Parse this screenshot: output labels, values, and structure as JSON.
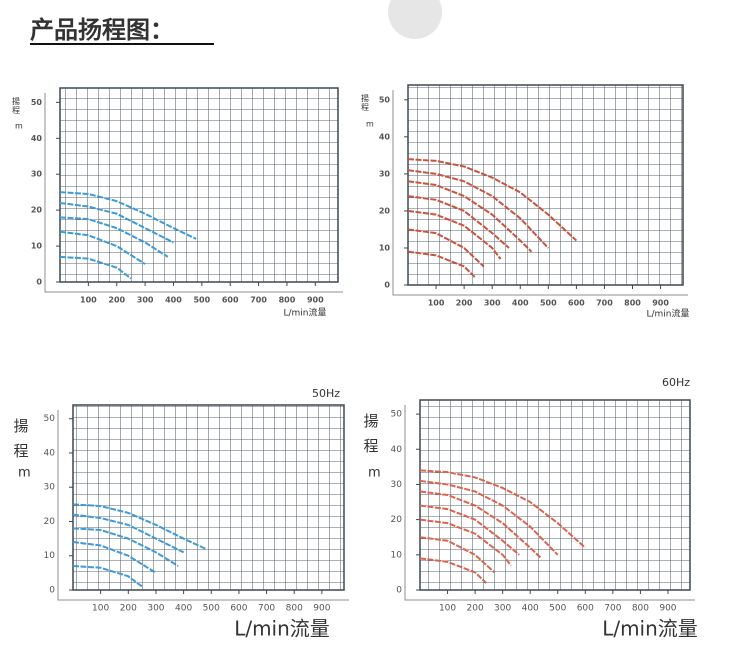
{
  "title": "产品扬程图：",
  "chart_data": [
    {
      "type": "line",
      "annotation": "",
      "y_label": "揚程",
      "y_unit": "m",
      "x_label": "L/min流量",
      "color": "#3f9ad6",
      "xlim": [
        0,
        980
      ],
      "ylim": [
        0,
        54
      ],
      "xticks": [
        100,
        200,
        300,
        400,
        500,
        600,
        700,
        800,
        900
      ],
      "yticks": [
        0,
        10,
        20,
        30,
        40,
        50
      ],
      "grid": true,
      "series": [
        {
          "x": [
            0,
            100,
            200,
            300,
            400,
            480
          ],
          "values": [
            25,
            24.5,
            22.5,
            19,
            15,
            12
          ]
        },
        {
          "x": [
            0,
            100,
            200,
            300,
            400
          ],
          "values": [
            22,
            21,
            19,
            15,
            11
          ]
        },
        {
          "x": [
            0,
            100,
            200,
            300,
            380
          ],
          "values": [
            18,
            17.5,
            15,
            11,
            7
          ]
        },
        {
          "x": [
            0,
            100,
            200,
            300
          ],
          "values": [
            14,
            13,
            10,
            5
          ]
        },
        {
          "x": [
            0,
            100,
            200,
            250
          ],
          "values": [
            7,
            6.5,
            4,
            1
          ]
        }
      ]
    },
    {
      "type": "line",
      "annotation": "",
      "y_label": "揚程",
      "y_unit": "m",
      "x_label": "L/min流量",
      "color": "#c8533f",
      "xlim": [
        0,
        980
      ],
      "ylim": [
        0,
        54
      ],
      "xticks": [
        100,
        200,
        300,
        400,
        500,
        600,
        700,
        800,
        900
      ],
      "yticks": [
        0,
        10,
        20,
        30,
        40,
        50
      ],
      "grid": true,
      "series": [
        {
          "x": [
            0,
            100,
            200,
            300,
            400,
            500,
            600
          ],
          "values": [
            34,
            33.5,
            32,
            29,
            25,
            19,
            12
          ]
        },
        {
          "x": [
            0,
            100,
            200,
            300,
            400,
            500
          ],
          "values": [
            31,
            30,
            28,
            24,
            18,
            10
          ]
        },
        {
          "x": [
            0,
            100,
            200,
            300,
            400,
            440
          ],
          "values": [
            28,
            27,
            24,
            19,
            12,
            9
          ]
        },
        {
          "x": [
            0,
            100,
            200,
            300,
            360
          ],
          "values": [
            24,
            23,
            20,
            14,
            10
          ]
        },
        {
          "x": [
            0,
            100,
            200,
            300,
            330
          ],
          "values": [
            20,
            19,
            16,
            10,
            7
          ]
        },
        {
          "x": [
            0,
            100,
            200,
            270
          ],
          "values": [
            15,
            14,
            10,
            5
          ]
        },
        {
          "x": [
            0,
            100,
            200,
            240
          ],
          "values": [
            9,
            8,
            5,
            2
          ]
        }
      ]
    },
    {
      "type": "line",
      "annotation": "50Hz",
      "y_label": "揚程",
      "y_unit": "m",
      "x_label": "L/min流量",
      "color": "#3f9ad6",
      "xlim": [
        0,
        980
      ],
      "ylim": [
        0,
        54
      ],
      "xticks": [
        100,
        200,
        300,
        400,
        500,
        600,
        700,
        800,
        900
      ],
      "yticks": [
        0,
        10,
        20,
        30,
        40,
        50
      ],
      "grid": true,
      "series": [
        {
          "x": [
            0,
            100,
            200,
            300,
            400,
            480
          ],
          "values": [
            25,
            24.5,
            22.5,
            19,
            15,
            12
          ]
        },
        {
          "x": [
            0,
            100,
            200,
            300,
            400
          ],
          "values": [
            22,
            21,
            19,
            15,
            11
          ]
        },
        {
          "x": [
            0,
            100,
            200,
            300,
            380
          ],
          "values": [
            18,
            17.5,
            15,
            11,
            7
          ]
        },
        {
          "x": [
            0,
            100,
            200,
            300
          ],
          "values": [
            14,
            13,
            10,
            5
          ]
        },
        {
          "x": [
            0,
            100,
            200,
            250
          ],
          "values": [
            7,
            6.5,
            4,
            1
          ]
        }
      ]
    },
    {
      "type": "line",
      "annotation": "60Hz",
      "y_label": "揚程",
      "y_unit": "m",
      "x_label": "L/min流量",
      "color": "#d9644f",
      "xlim": [
        0,
        980
      ],
      "ylim": [
        0,
        54
      ],
      "xticks": [
        100,
        200,
        300,
        400,
        500,
        600,
        700,
        800,
        900
      ],
      "yticks": [
        0,
        10,
        20,
        30,
        40,
        50
      ],
      "grid": true,
      "series": [
        {
          "x": [
            0,
            100,
            200,
            300,
            400,
            500,
            600
          ],
          "values": [
            34,
            33.5,
            32,
            29,
            25,
            19,
            12
          ]
        },
        {
          "x": [
            0,
            100,
            200,
            300,
            400,
            500
          ],
          "values": [
            31,
            30,
            28,
            24,
            18,
            10
          ]
        },
        {
          "x": [
            0,
            100,
            200,
            300,
            400,
            440
          ],
          "values": [
            28,
            27,
            24,
            19,
            12,
            9
          ]
        },
        {
          "x": [
            0,
            100,
            200,
            300,
            360
          ],
          "values": [
            24,
            23,
            20,
            14,
            10
          ]
        },
        {
          "x": [
            0,
            100,
            200,
            300,
            330
          ],
          "values": [
            20,
            19,
            16,
            10,
            7
          ]
        },
        {
          "x": [
            0,
            100,
            200,
            270
          ],
          "values": [
            15,
            14,
            10,
            5
          ]
        },
        {
          "x": [
            0,
            100,
            200,
            240
          ],
          "values": [
            9,
            8,
            5,
            2
          ]
        }
      ]
    }
  ]
}
